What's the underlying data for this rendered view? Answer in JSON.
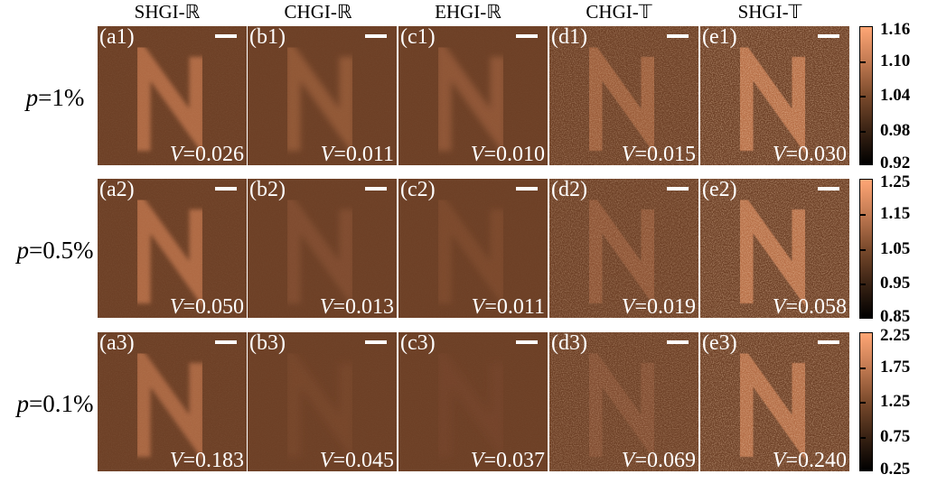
{
  "columns": [
    "SHGI-ℝ",
    "CHGI-ℝ",
    "EHGI-ℝ",
    "CHGI-𝕋",
    "SHGI-𝕋"
  ],
  "rows": [
    {
      "p_symbol": "p",
      "p_value": "=1%",
      "panels": [
        {
          "label": "(a1)",
          "v_symbol": "V",
          "v_value": "=0.026"
        },
        {
          "label": "(b1)",
          "v_symbol": "V",
          "v_value": "=0.011"
        },
        {
          "label": "(c1)",
          "v_symbol": "V",
          "v_value": "=0.010"
        },
        {
          "label": "(d1)",
          "v_symbol": "V",
          "v_value": "=0.015"
        },
        {
          "label": "(e1)",
          "v_symbol": "V",
          "v_value": "=0.030"
        }
      ],
      "colorbar": [
        "1.16",
        "1.10",
        "1.04",
        "0.98",
        "0.92"
      ]
    },
    {
      "p_symbol": "p",
      "p_value": "=0.5%",
      "panels": [
        {
          "label": "(a2)",
          "v_symbol": "V",
          "v_value": "=0.050"
        },
        {
          "label": "(b2)",
          "v_symbol": "V",
          "v_value": "=0.013"
        },
        {
          "label": "(c2)",
          "v_symbol": "V",
          "v_value": "=0.011"
        },
        {
          "label": "(d2)",
          "v_symbol": "V",
          "v_value": "=0.019"
        },
        {
          "label": "(e2)",
          "v_symbol": "V",
          "v_value": "=0.058"
        }
      ],
      "colorbar": [
        "1.25",
        "1.15",
        "1.05",
        "0.95",
        "0.85"
      ]
    },
    {
      "p_symbol": "p",
      "p_value": "=0.1%",
      "panels": [
        {
          "label": "(a3)",
          "v_symbol": "V",
          "v_value": "=0.183"
        },
        {
          "label": "(b3)",
          "v_symbol": "V",
          "v_value": "=0.045"
        },
        {
          "label": "(c3)",
          "v_symbol": "V",
          "v_value": "=0.037"
        },
        {
          "label": "(d3)",
          "v_symbol": "V",
          "v_value": "=0.069"
        },
        {
          "label": "(e3)",
          "v_symbol": "V",
          "v_value": "=0.240"
        }
      ],
      "colorbar": [
        "2.25",
        "1.75",
        "1.25",
        "0.75",
        "0.25"
      ]
    }
  ],
  "colormap": [
    "#000000",
    "#3a2314",
    "#7a4a2c",
    "#c27a52",
    "#ffa675"
  ]
}
